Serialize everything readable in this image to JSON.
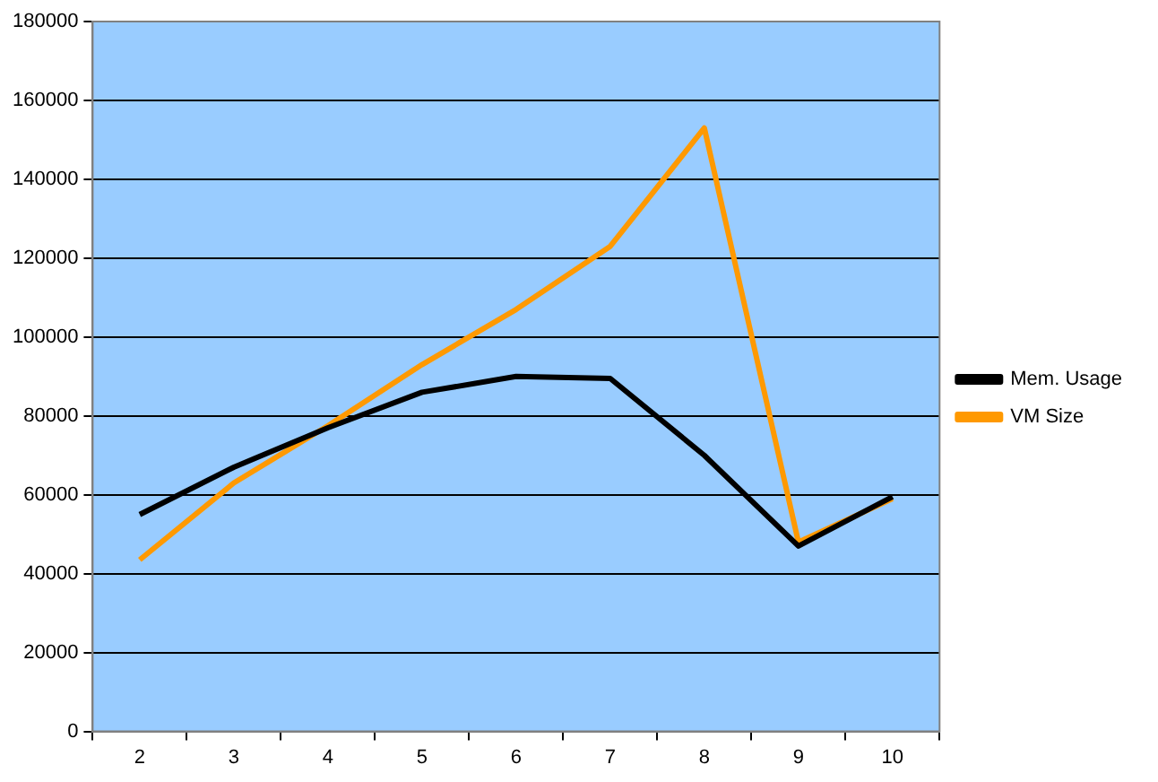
{
  "chart_data": {
    "type": "line",
    "categories": [
      "2",
      "3",
      "4",
      "5",
      "6",
      "7",
      "8",
      "9",
      "10"
    ],
    "series": [
      {
        "name": "Mem. Usage",
        "color": "#000000",
        "values": [
          55000,
          67000,
          77000,
          86000,
          90000,
          89500,
          70000,
          47000,
          59500
        ]
      },
      {
        "name": "VM Size",
        "color": "#ff9900",
        "values": [
          43500,
          63000,
          77500,
          93000,
          107000,
          123000,
          153000,
          48000,
          59000
        ]
      }
    ],
    "ylim": [
      0,
      180000
    ],
    "yticks": [
      0,
      20000,
      40000,
      60000,
      80000,
      100000,
      120000,
      140000,
      160000,
      180000
    ],
    "grid": "y",
    "legend": "right",
    "marker": "none",
    "line_style": "solid"
  }
}
